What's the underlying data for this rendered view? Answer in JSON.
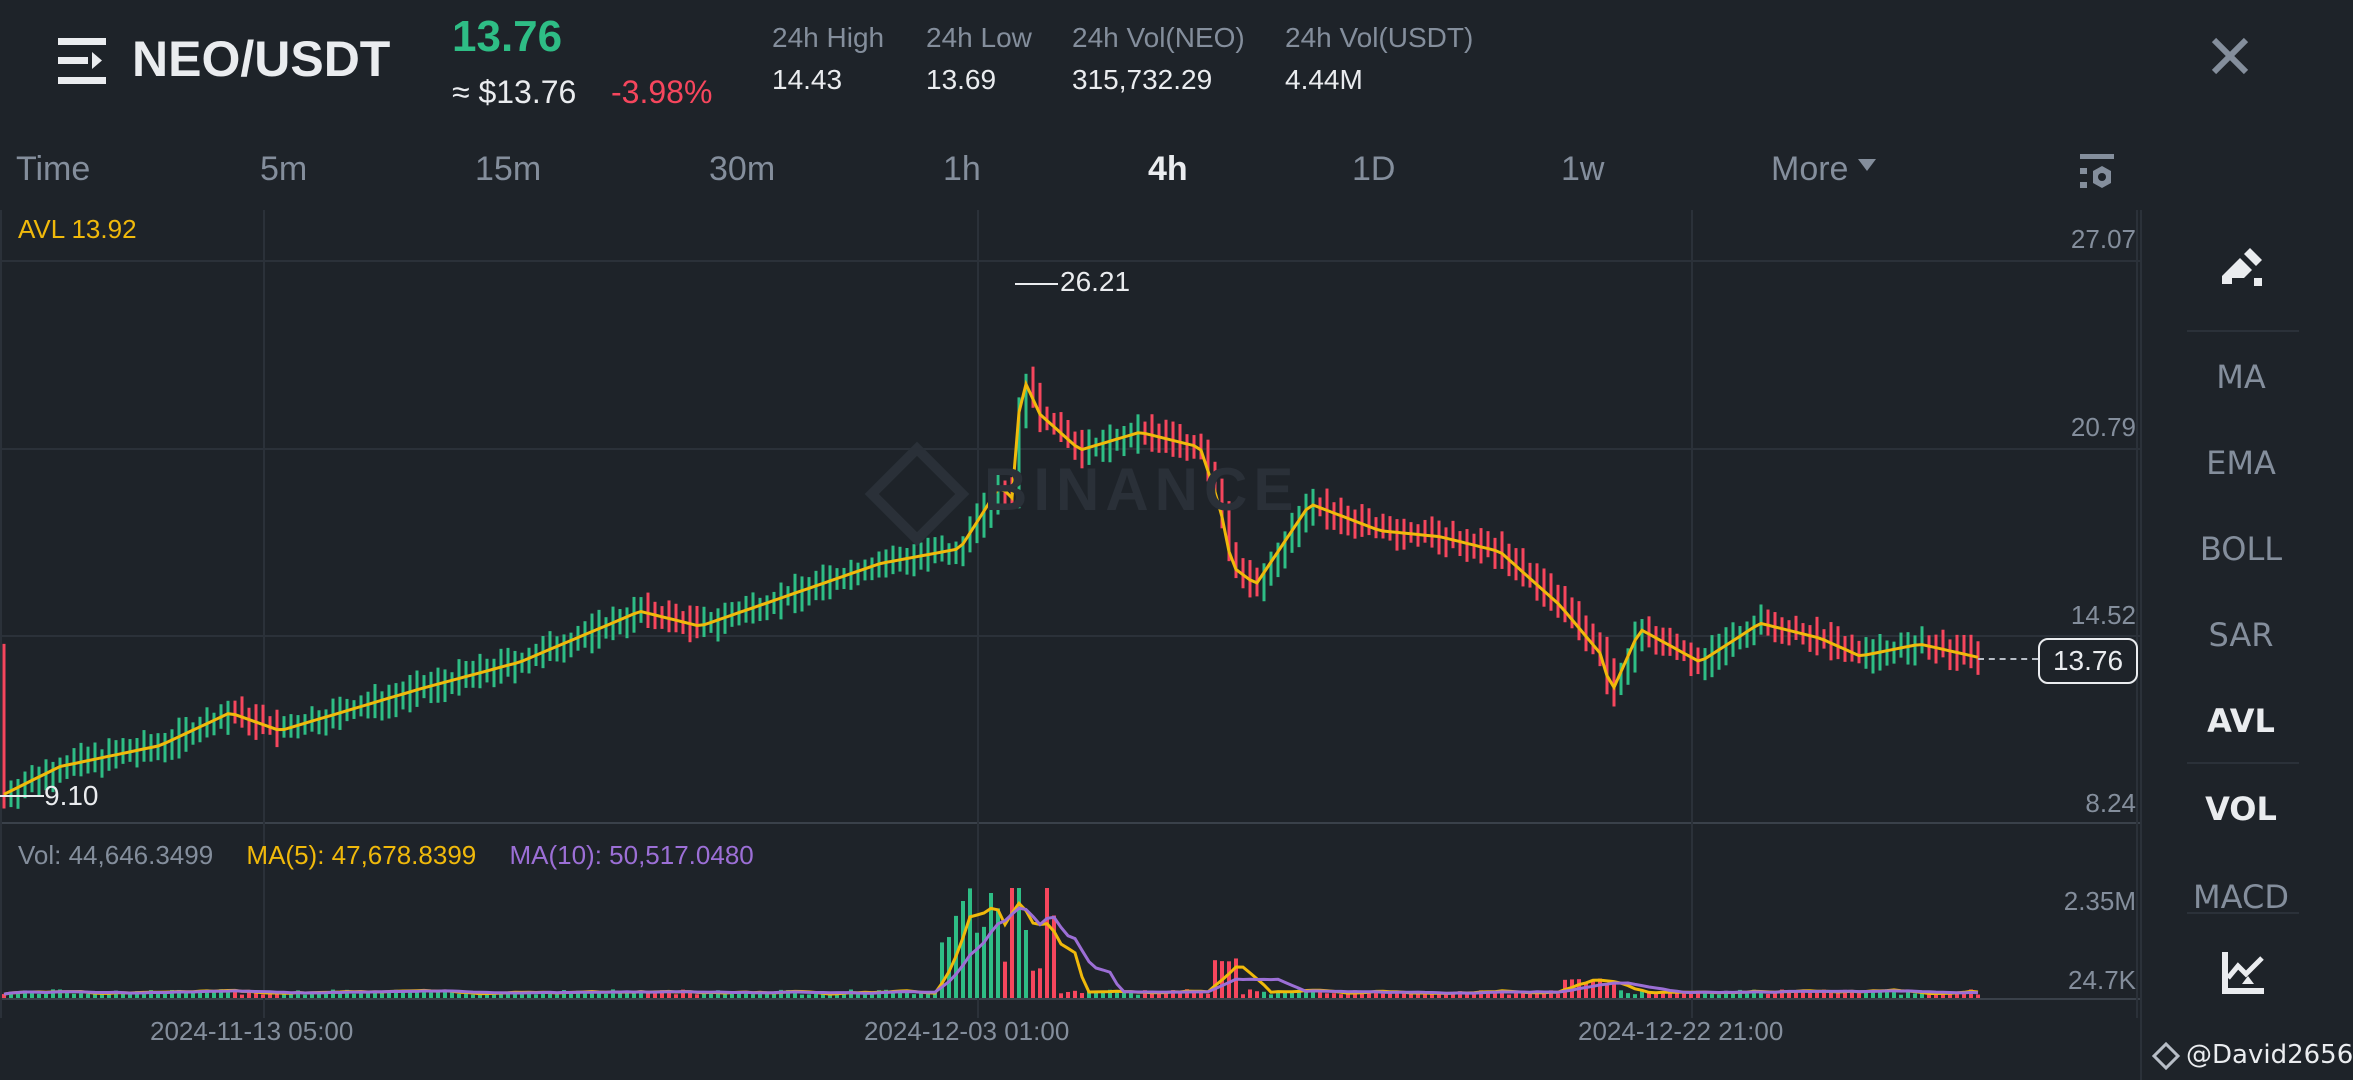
{
  "header": {
    "menu_icon": "menu-expand-icon",
    "pair": "NEO/USDT",
    "last_price": "13.76",
    "approx_usd": "≈ $13.76",
    "change_pct": "-3.98%",
    "stats": [
      {
        "label": "24h High",
        "value": "14.43"
      },
      {
        "label": "24h Low",
        "value": "13.69"
      },
      {
        "label": "24h Vol(NEO)",
        "value": "315,732.29"
      },
      {
        "label": "24h Vol(USDT)",
        "value": "4.44M"
      }
    ],
    "close_icon": "close-icon"
  },
  "intervals": {
    "items": [
      {
        "label": "Time",
        "active": false
      },
      {
        "label": "5m",
        "active": false
      },
      {
        "label": "15m",
        "active": false
      },
      {
        "label": "30m",
        "active": false
      },
      {
        "label": "1h",
        "active": false
      },
      {
        "label": "4h",
        "active": true
      },
      {
        "label": "1D",
        "active": false
      },
      {
        "label": "1w",
        "active": false
      },
      {
        "label": "More",
        "active": false
      }
    ],
    "settings_icon": "chart-settings-icon"
  },
  "chart": {
    "avl_legend": "AVL 13.92",
    "price_axis": [
      "27.07",
      "20.79",
      "14.52",
      "8.24"
    ],
    "high_marker": "26.21",
    "low_marker": "9.10",
    "current_price_tag": "13.76",
    "watermark": "BINANCE",
    "volume_legend": {
      "vol": "Vol: 44,646.3499",
      "ma5": "MA(5): 47,678.8399",
      "ma10": "MA(10): 50,517.0480"
    },
    "volume_axis": [
      "2.35M",
      "24.7K"
    ],
    "time_axis": [
      "2024-11-13 05:00",
      "2024-12-03 01:00",
      "2024-12-22 21:00"
    ]
  },
  "colors": {
    "background": "#1e2329",
    "up": "#2ebd85",
    "down": "#f6465d",
    "avl_line": "#f0b90b",
    "ma5": "#f0b90b",
    "ma10": "#9c6fd6",
    "text_muted": "#848e9c",
    "text_primary": "#eaecef"
  },
  "sidebar": {
    "draw_icon": "draw-pen-icon",
    "items": [
      {
        "label": "MA",
        "active": false
      },
      {
        "label": "EMA",
        "active": false
      },
      {
        "label": "BOLL",
        "active": false
      },
      {
        "label": "SAR",
        "active": false
      },
      {
        "label": "AVL",
        "active": true
      },
      {
        "label": "VOL",
        "active": true
      },
      {
        "label": "MACD",
        "active": false
      }
    ],
    "indicator_icon": "indicator-chart-icon"
  },
  "footer": {
    "credit": "@David2656"
  }
}
